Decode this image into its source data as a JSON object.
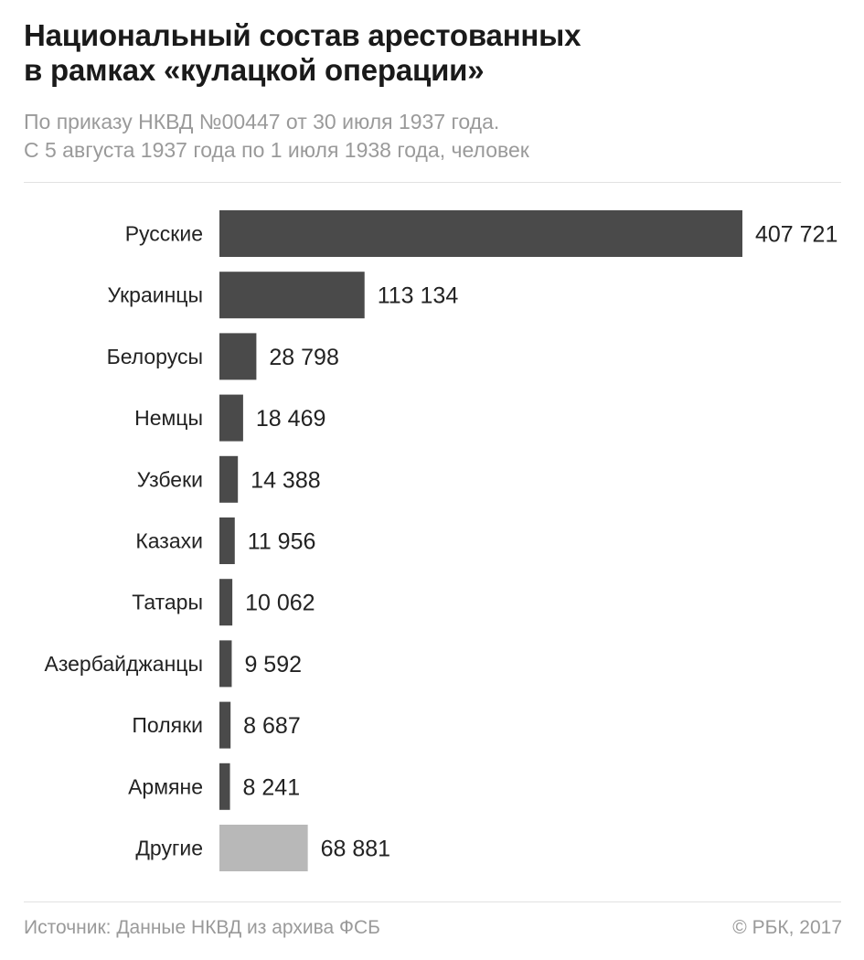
{
  "title_lines": [
    "Национальный состав арестованных",
    "в рамках  «кулацкой операции»"
  ],
  "subtitle_lines": [
    "По приказу НКВД №00447 от 30 июля 1937 года.",
    "С 5 августа 1937 года по 1 июля 1938 года, человек"
  ],
  "footer": {
    "source": "Источник: Данные НКВД из архива ФСБ",
    "copyright": "© РБК, 2017"
  },
  "colors": {
    "bar": "#4a4a4a",
    "bar_other": "#b8b8b8",
    "label": "#222222"
  },
  "chart_data": {
    "type": "bar",
    "orientation": "horizontal",
    "categories": [
      "Русские",
      "Украинцы",
      "Белорусы",
      "Немцы",
      "Узбеки",
      "Казахи",
      "Татары",
      "Азербайджанцы",
      "Поляки",
      "Армяне",
      "Другие"
    ],
    "values": [
      407721,
      113134,
      28798,
      18469,
      14388,
      11956,
      10062,
      9592,
      8687,
      8241,
      68881
    ],
    "value_labels": [
      "407 721",
      "113 134",
      "28 798",
      "18 469",
      "14 388",
      "11 956",
      "10 062",
      "9 592",
      "8 687",
      "8 241",
      "68 881"
    ],
    "highlight_category": "Другие",
    "grid": false,
    "legend": "none"
  }
}
